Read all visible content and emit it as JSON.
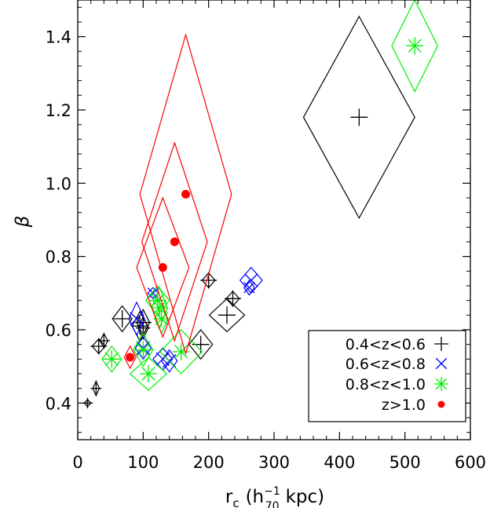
{
  "chart_data": {
    "type": "scatter",
    "title": "",
    "xlabel": "r",
    "xlabel_sub": "c",
    "xlabel_units": "(h",
    "xlabel_units_sup": "−1",
    "xlabel_units_sub": "70",
    "xlabel_units_tail": "kpc)",
    "ylabel": "β",
    "xlim": [
      0,
      600
    ],
    "ylim": [
      0.3,
      1.5
    ],
    "xticks": [
      0,
      100,
      200,
      300,
      400,
      500,
      600
    ],
    "yticks": [
      0.4,
      0.6,
      0.8,
      1.0,
      1.2,
      1.4
    ],
    "ytick_labels": [
      "0.4",
      "0.6",
      "0.8",
      "1.0",
      "1.2",
      "1.4"
    ],
    "grid": false,
    "legend_position": "bottom-right",
    "series": [
      {
        "name": "0.4<z<0.6",
        "marker": "plus",
        "color": "#000000",
        "points": [
          {
            "x": 15,
            "y": 0.4,
            "dx": 5,
            "dy": 0.01
          },
          {
            "x": 28,
            "y": 0.44,
            "dx": 5,
            "dy": 0.02
          },
          {
            "x": 32,
            "y": 0.555,
            "dx": 10,
            "dy": 0.02
          },
          {
            "x": 40,
            "y": 0.57,
            "dx": 6,
            "dy": 0.02
          },
          {
            "x": 68,
            "y": 0.63,
            "dx": 15,
            "dy": 0.035
          },
          {
            "x": 95,
            "y": 0.61,
            "dx": 12,
            "dy": 0.04
          },
          {
            "x": 100,
            "y": 0.62,
            "dx": 10,
            "dy": 0.035
          },
          {
            "x": 100,
            "y": 0.605,
            "dx": 8,
            "dy": 0.03
          },
          {
            "x": 188,
            "y": 0.56,
            "dx": 18,
            "dy": 0.04
          },
          {
            "x": 200,
            "y": 0.735,
            "dx": 10,
            "dy": 0.02
          },
          {
            "x": 228,
            "y": 0.64,
            "dx": 27,
            "dy": 0.045
          },
          {
            "x": 237,
            "y": 0.685,
            "dx": 10,
            "dy": 0.02
          },
          {
            "x": 430,
            "y": 1.18,
            "dx": 85,
            "dy": 0.275
          }
        ]
      },
      {
        "name": "0.6<z<0.8",
        "marker": "x",
        "color": "#0000ff",
        "points": [
          {
            "x": 90,
            "y": 0.63,
            "dx": 12,
            "dy": 0.045
          },
          {
            "x": 100,
            "y": 0.55,
            "dx": 12,
            "dy": 0.03
          },
          {
            "x": 115,
            "y": 0.7,
            "dx": 8,
            "dy": 0.015
          },
          {
            "x": 130,
            "y": 0.52,
            "dx": 15,
            "dy": 0.03
          },
          {
            "x": 140,
            "y": 0.515,
            "dx": 12,
            "dy": 0.03
          },
          {
            "x": 265,
            "y": 0.735,
            "dx": 17,
            "dy": 0.035
          },
          {
            "x": 262,
            "y": 0.715,
            "dx": 8,
            "dy": 0.02
          }
        ]
      },
      {
        "name": "0.8<z<1.0",
        "marker": "asterisk",
        "color": "#00ee00",
        "points": [
          {
            "x": 52,
            "y": 0.52,
            "dx": 15,
            "dy": 0.035
          },
          {
            "x": 100,
            "y": 0.545,
            "dx": 15,
            "dy": 0.045
          },
          {
            "x": 108,
            "y": 0.48,
            "dx": 28,
            "dy": 0.045
          },
          {
            "x": 122,
            "y": 0.68,
            "dx": 18,
            "dy": 0.04
          },
          {
            "x": 125,
            "y": 0.66,
            "dx": 12,
            "dy": 0.055
          },
          {
            "x": 128,
            "y": 0.63,
            "dx": 10,
            "dy": 0.04
          },
          {
            "x": 158,
            "y": 0.54,
            "dx": 32,
            "dy": 0.06
          },
          {
            "x": 515,
            "y": 1.375,
            "dx": 35,
            "dy": 0.125
          }
        ]
      },
      {
        "name": "z>1.0",
        "marker": "dot",
        "color": "#ff0000",
        "points": [
          {
            "x": 80,
            "y": 0.525,
            "dx": 9,
            "dy": 0.03
          },
          {
            "x": 130,
            "y": 0.77,
            "dx": 40,
            "dy": 0.19
          },
          {
            "x": 148,
            "y": 0.84,
            "dx": 50,
            "dy": 0.27
          },
          {
            "x": 165,
            "y": 0.97,
            "dx": 70,
            "dy": 0.435
          }
        ]
      }
    ]
  },
  "legend": {
    "entries": [
      "0.4<z<0.6",
      "0.6<z<0.8",
      "0.8<z<1.0",
      "z>1.0"
    ]
  }
}
